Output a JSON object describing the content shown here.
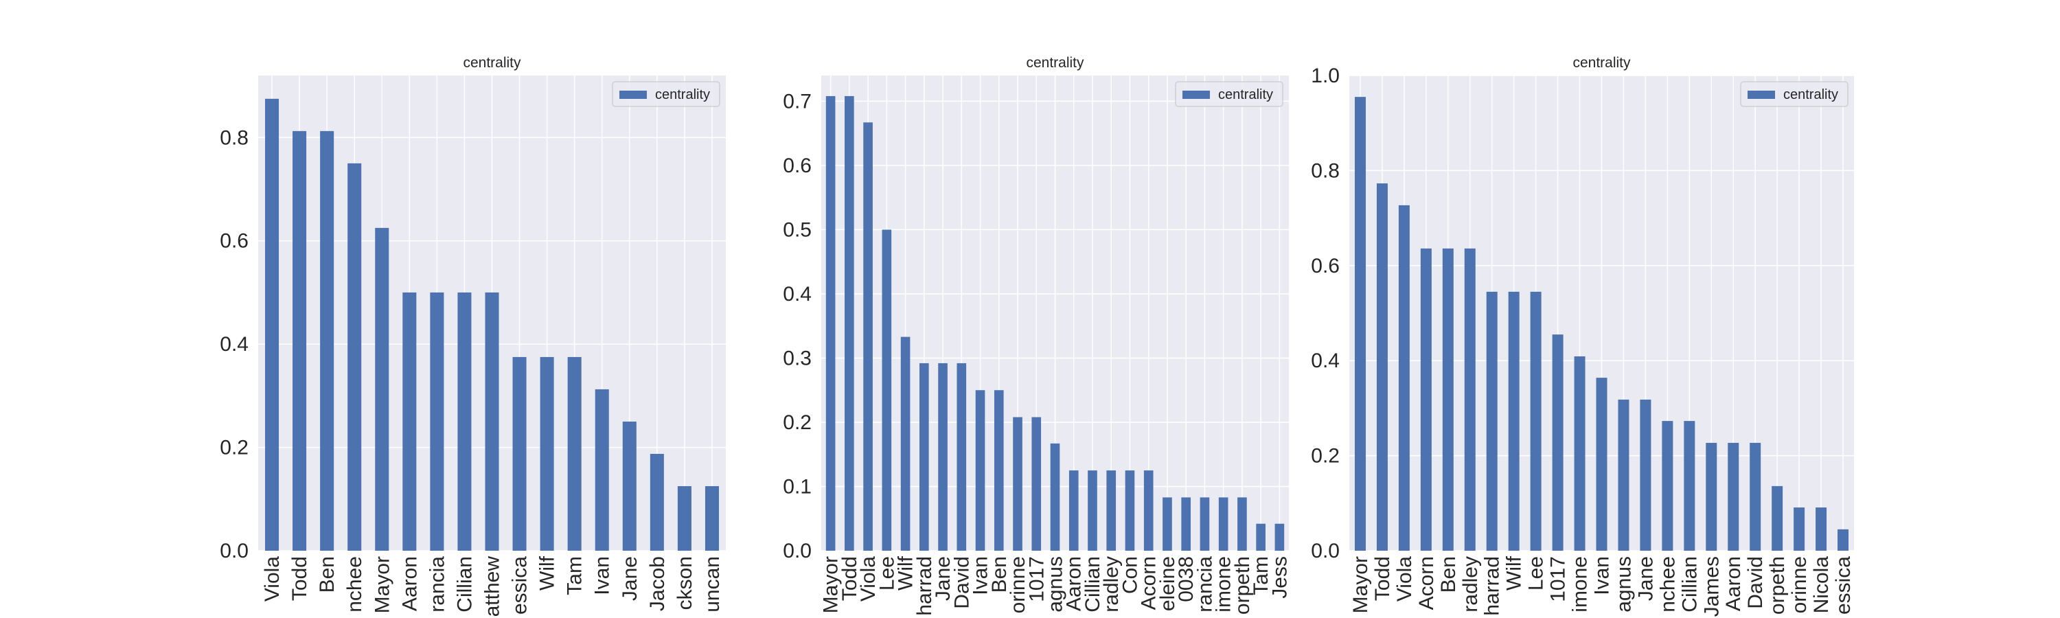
{
  "colors": {
    "figure_background": "#ffffff",
    "plot_background": "#eaeaf2",
    "grid": "#ffffff",
    "bar": "#4c72b0",
    "text": "#262626"
  },
  "chart_data": [
    {
      "type": "bar",
      "title": "centrality",
      "xlabel": "",
      "ylabel": "",
      "legend": {
        "position": "top-right",
        "entries": [
          "centrality"
        ]
      },
      "grid": true,
      "ylim": [
        0,
        0.92
      ],
      "yticks": [
        0.0,
        0.2,
        0.4,
        0.6,
        0.8
      ],
      "ytick_labels": [
        "0.0",
        "0.2",
        "0.4",
        "0.6",
        "0.8"
      ],
      "categories": [
        "Viola",
        "Todd",
        "Ben",
        "Manchee",
        "Mayor",
        "Aaron",
        "Francia",
        "Cillian",
        "Matthew",
        "Jessica",
        "Wilf",
        "Tam",
        "Ivan",
        "Jane",
        "Jacob",
        "Jackson",
        "Duncan"
      ],
      "category_labels_shown": [
        "Viola",
        "Todd",
        "Ben",
        "nchee",
        "Mayor",
        "Aaron",
        "rancia",
        "Cillian",
        "atthew",
        "essica",
        "Wilf",
        "Tam",
        "Ivan",
        "Jane",
        "Jacob",
        "ckson",
        "uncan"
      ],
      "series": [
        {
          "name": "centrality",
          "values": [
            0.875,
            0.8125,
            0.8125,
            0.75,
            0.625,
            0.5,
            0.5,
            0.5,
            0.5,
            0.375,
            0.375,
            0.375,
            0.3125,
            0.25,
            0.1875,
            0.125,
            0.125
          ]
        }
      ]
    },
    {
      "type": "bar",
      "title": "centrality",
      "xlabel": "",
      "ylabel": "",
      "legend": {
        "position": "top-right",
        "entries": [
          "centrality"
        ]
      },
      "grid": true,
      "ylim": [
        0,
        0.74
      ],
      "yticks": [
        0.0,
        0.1,
        0.2,
        0.3,
        0.4,
        0.5,
        0.6,
        0.7
      ],
      "ytick_labels": [
        "0.0",
        "0.1",
        "0.2",
        "0.3",
        "0.4",
        "0.5",
        "0.6",
        "0.7"
      ],
      "categories": [
        "Mayor",
        "Todd",
        "Viola",
        "Lee",
        "Wilf",
        "Sharrad",
        "Jane",
        "David",
        "Ivan",
        "Ben",
        "Corinne",
        "1017",
        "Magnus",
        "Aaron",
        "Cillian",
        "Bradley",
        "Con",
        "Acorn",
        "Madeleine",
        "0038",
        "Francia",
        "Simone",
        "Morpeth",
        "Tam",
        "Jess"
      ],
      "category_labels_shown": [
        "Mayor",
        "Todd",
        "Viola",
        "Lee",
        "Wilf",
        "harrad",
        "Jane",
        "David",
        "Ivan",
        "Ben",
        "orinne",
        "1017",
        "agnus",
        "Aaron",
        "Cillian",
        "radley",
        "Con",
        "Acorn",
        "eleine",
        "0038",
        "rancia",
        "imone",
        "orpeth",
        "Tam",
        "Jess"
      ],
      "series": [
        {
          "name": "centrality",
          "values": [
            0.708,
            0.708,
            0.667,
            0.5,
            0.333,
            0.292,
            0.292,
            0.292,
            0.25,
            0.25,
            0.208,
            0.208,
            0.167,
            0.125,
            0.125,
            0.125,
            0.125,
            0.125,
            0.083,
            0.083,
            0.083,
            0.083,
            0.083,
            0.042,
            0.042
          ]
        }
      ]
    },
    {
      "type": "bar",
      "title": "centrality",
      "xlabel": "",
      "ylabel": "",
      "legend": {
        "position": "top-right",
        "entries": [
          "centrality"
        ]
      },
      "grid": true,
      "ylim": [
        0,
        1.0
      ],
      "yticks": [
        0.0,
        0.2,
        0.4,
        0.6,
        0.8,
        1.0
      ],
      "ytick_labels": [
        "0.0",
        "0.2",
        "0.4",
        "0.6",
        "0.8",
        "1.0"
      ],
      "categories": [
        "Mayor",
        "Todd",
        "Viola",
        "Acorn",
        "Ben",
        "Bradley",
        "Sharrad",
        "Wilf",
        "Lee",
        "1017",
        "Simone",
        "Ivan",
        "Magnus",
        "Jane",
        "Manchee",
        "Cillian",
        "James",
        "Aaron",
        "David",
        "Morpeth",
        "Corinne",
        "Nicola",
        "Jessica"
      ],
      "category_labels_shown": [
        "Mayor",
        "Todd",
        "Viola",
        "Acorn",
        "Ben",
        "radley",
        "harrad",
        "Wilf",
        "Lee",
        "1017",
        "imone",
        "Ivan",
        "agnus",
        "Jane",
        "nchee",
        "Cillian",
        "James",
        "Aaron",
        "David",
        "orpeth",
        "orinne",
        "Nicola",
        "essica"
      ],
      "series": [
        {
          "name": "centrality",
          "values": [
            0.955,
            0.773,
            0.727,
            0.636,
            0.636,
            0.636,
            0.545,
            0.545,
            0.545,
            0.455,
            0.409,
            0.364,
            0.318,
            0.318,
            0.273,
            0.273,
            0.227,
            0.227,
            0.227,
            0.136,
            0.091,
            0.091,
            0.045
          ]
        }
      ]
    }
  ]
}
